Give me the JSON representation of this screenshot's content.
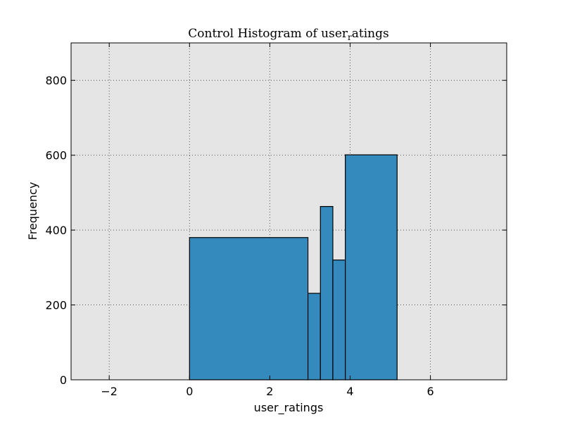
{
  "chart_data": {
    "type": "bar",
    "title": "Control Histogram of user",
    "title_subscript": "r",
    "title_suffix": "atings",
    "xlabel": "user_ratings",
    "ylabel": "Frequency",
    "xlim": [
      -2.95,
      7.9
    ],
    "ylim": [
      0,
      900
    ],
    "xticks": [
      -2,
      0,
      2,
      4,
      6
    ],
    "xtick_labels": [
      "−2",
      "0",
      "2",
      "4",
      "6"
    ],
    "yticks": [
      0,
      200,
      400,
      600,
      800
    ],
    "ytick_labels": [
      "0",
      "200",
      "400",
      "600",
      "800"
    ],
    "grid": true,
    "background_color": "#e5e5e5",
    "bar_color": "#348abd",
    "bins": [
      {
        "x0": 0.0,
        "x1": 2.95,
        "value": 380
      },
      {
        "x0": 2.95,
        "x1": 3.26,
        "value": 231
      },
      {
        "x0": 3.26,
        "x1": 3.57,
        "value": 463
      },
      {
        "x0": 3.57,
        "x1": 3.88,
        "value": 320
      },
      {
        "x0": 3.88,
        "x1": 5.17,
        "value": 601
      }
    ]
  }
}
